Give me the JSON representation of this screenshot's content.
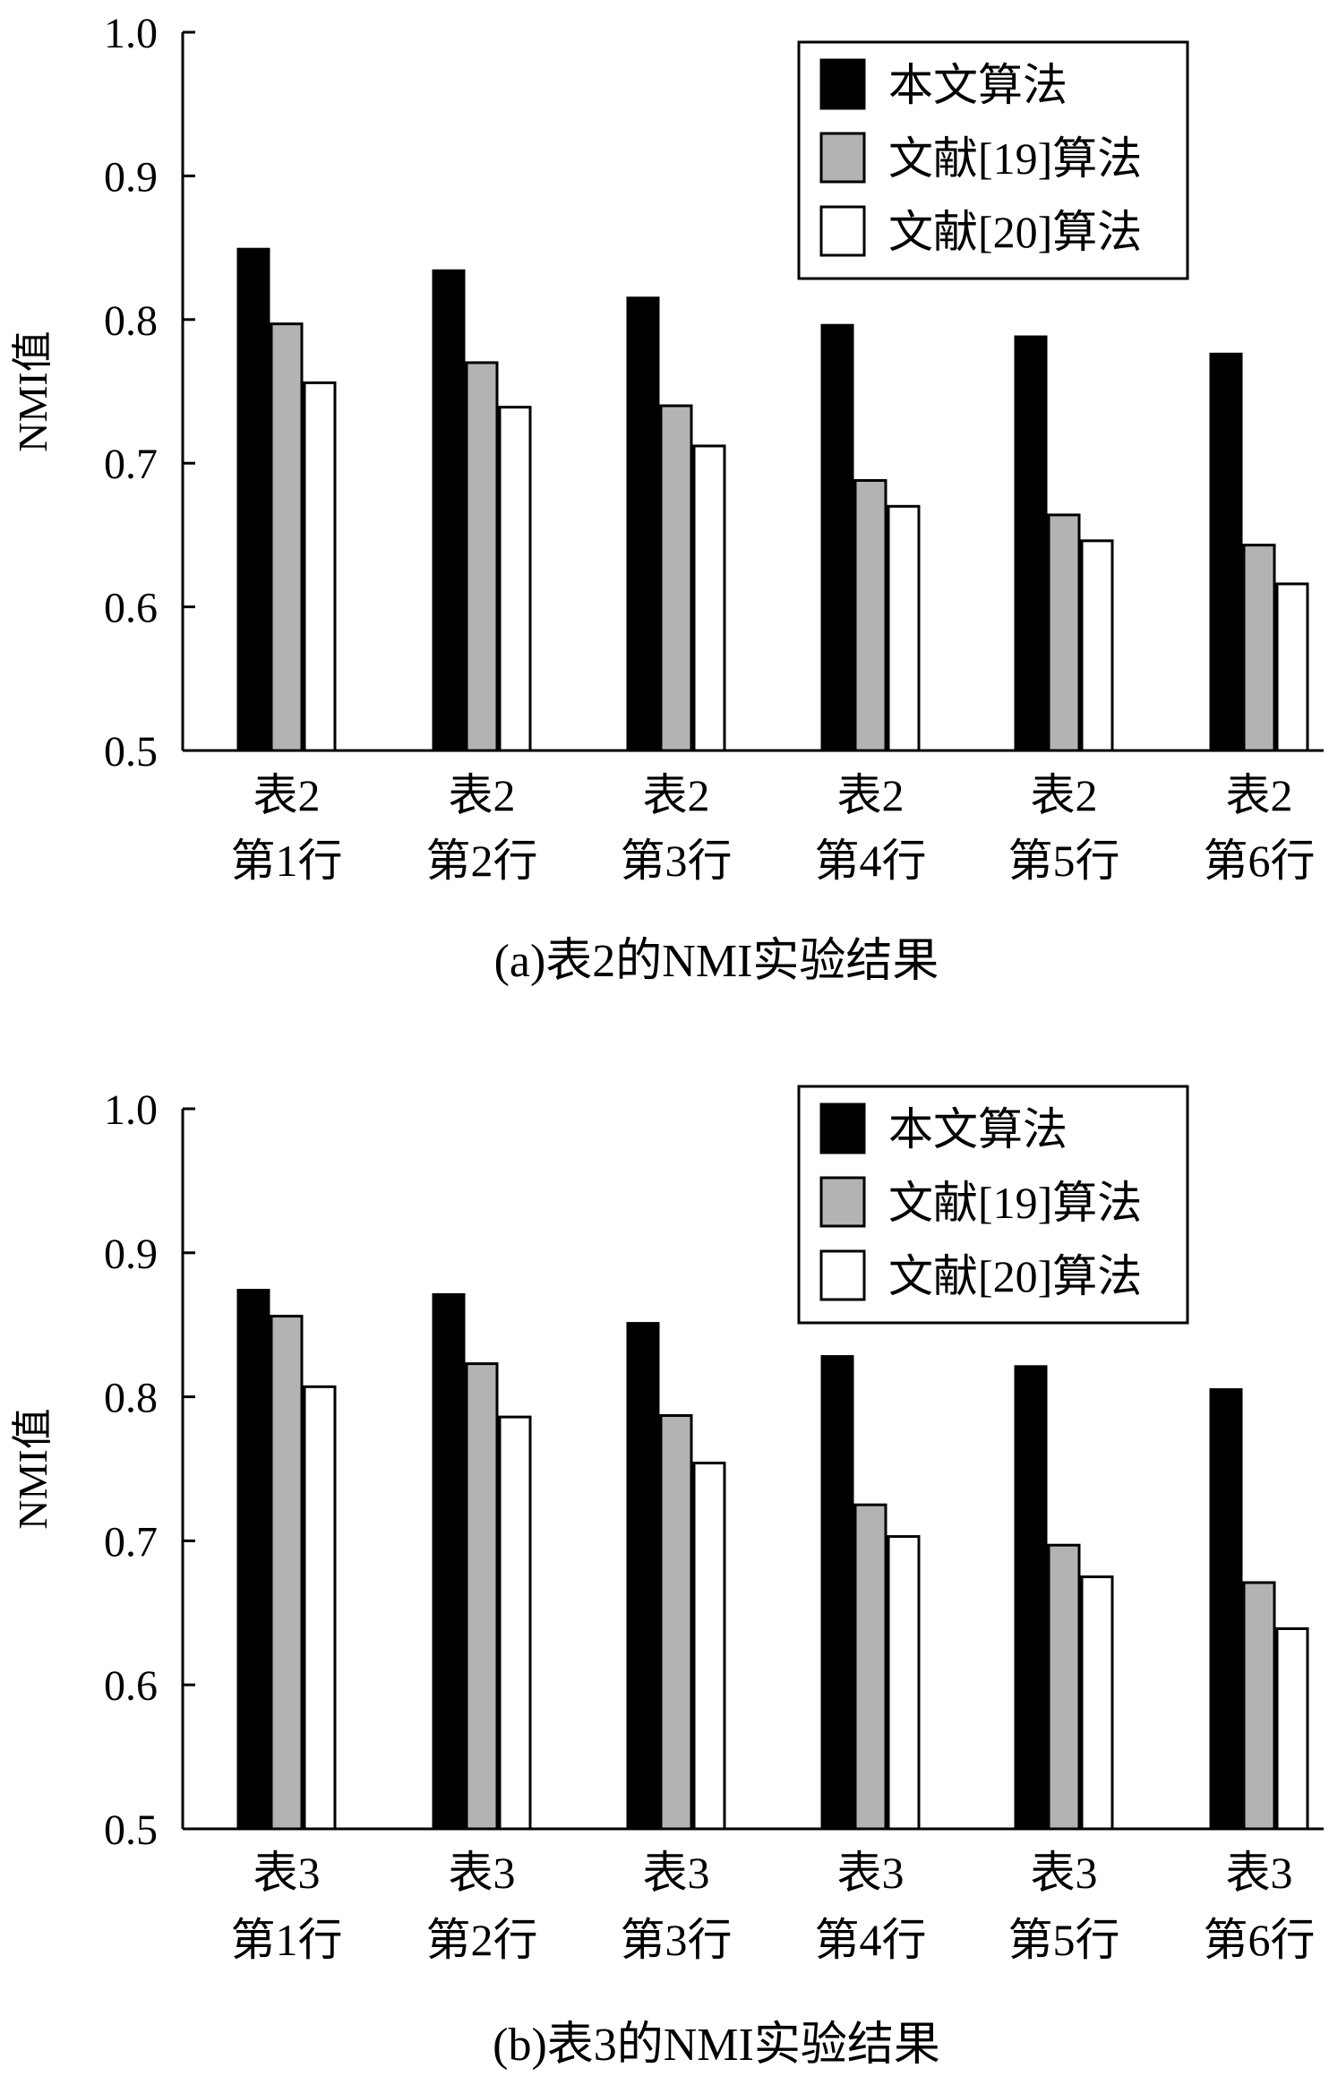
{
  "colors": {
    "series_fills": [
      "#000000",
      "#b3b3b3",
      "#ffffff"
    ],
    "stroke": "#000000"
  },
  "chart_data": [
    {
      "type": "bar",
      "caption": "(a)表2的NMI实验结果",
      "ylabel": "NMI值",
      "ylim": [
        0.5,
        1.0
      ],
      "yticks": [
        "0.5",
        "0.6",
        "0.7",
        "0.8",
        "0.9",
        "1.0"
      ],
      "categories": [
        [
          "表2",
          "第1行"
        ],
        [
          "表2",
          "第2行"
        ],
        [
          "表2",
          "第3行"
        ],
        [
          "表2",
          "第4行"
        ],
        [
          "表2",
          "第5行"
        ],
        [
          "表2",
          "第6行"
        ]
      ],
      "legend_position": "top-right",
      "series": [
        {
          "name": "本文算法",
          "values": [
            0.849,
            0.834,
            0.815,
            0.796,
            0.788,
            0.776
          ]
        },
        {
          "name": "文献[19]算法",
          "values": [
            0.797,
            0.77,
            0.74,
            0.688,
            0.664,
            0.643
          ]
        },
        {
          "name": "文献[20]算法",
          "values": [
            0.756,
            0.739,
            0.712,
            0.67,
            0.646,
            0.616
          ]
        }
      ]
    },
    {
      "type": "bar",
      "caption": "(b)表3的NMI实验结果",
      "ylabel": "NMI值",
      "ylim": [
        0.5,
        1.0
      ],
      "yticks": [
        "0.5",
        "0.6",
        "0.7",
        "0.8",
        "0.9",
        "1.0"
      ],
      "categories": [
        [
          "表3",
          "第1行"
        ],
        [
          "表3",
          "第2行"
        ],
        [
          "表3",
          "第3行"
        ],
        [
          "表3",
          "第4行"
        ],
        [
          "表3",
          "第5行"
        ],
        [
          "表3",
          "第6行"
        ]
      ],
      "legend_position": "top-right",
      "series": [
        {
          "name": "本文算法",
          "values": [
            0.874,
            0.871,
            0.851,
            0.828,
            0.821,
            0.805
          ]
        },
        {
          "name": "文献[19]算法",
          "values": [
            0.856,
            0.823,
            0.787,
            0.725,
            0.697,
            0.671
          ]
        },
        {
          "name": "文献[20]算法",
          "values": [
            0.807,
            0.786,
            0.754,
            0.703,
            0.675,
            0.639
          ]
        }
      ]
    }
  ]
}
